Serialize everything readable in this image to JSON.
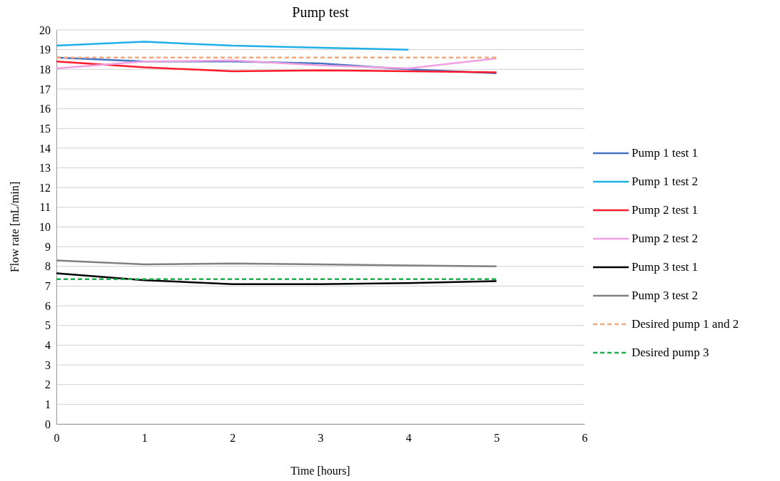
{
  "chart_data": {
    "type": "line",
    "title": "Pump test",
    "xlabel": "Time [hours]",
    "ylabel": "Flow rate [mL/min]",
    "x": [
      0,
      1,
      2,
      3,
      4,
      5
    ],
    "xlim": [
      0,
      6
    ],
    "xticks": [
      0,
      1,
      2,
      3,
      4,
      5,
      6
    ],
    "ylim": [
      0,
      20
    ],
    "yticks": [
      0,
      1,
      2,
      3,
      4,
      5,
      6,
      7,
      8,
      9,
      10,
      11,
      12,
      13,
      14,
      15,
      16,
      17,
      18,
      19,
      20
    ],
    "grid": "y",
    "legend": "right",
    "marker": "none",
    "series": [
      {
        "name": "Pump 1 test 1",
        "color": "#4472c4",
        "values": [
          18.6,
          18.4,
          18.4,
          18.3,
          18.0,
          17.8
        ]
      },
      {
        "name": "Pump 1 test 2",
        "color": "#1fb0e8",
        "values": [
          19.2,
          19.4,
          19.2,
          19.1,
          19.0,
          null
        ]
      },
      {
        "name": "Pump 2 test 1",
        "color": "#ff1a2a",
        "values": [
          18.4,
          18.1,
          17.9,
          17.95,
          17.9,
          17.85
        ]
      },
      {
        "name": "Pump 2 test 2",
        "color": "#eea0e0",
        "values": [
          18.05,
          18.4,
          18.45,
          18.2,
          18.05,
          18.55
        ]
      },
      {
        "name": "Pump 3 test 1",
        "color": "#000000",
        "values": [
          7.65,
          7.3,
          7.1,
          7.1,
          7.15,
          7.25
        ]
      },
      {
        "name": "Pump 3 test 2",
        "color": "#808080",
        "values": [
          8.3,
          8.1,
          8.15,
          8.1,
          8.05,
          8.0
        ]
      },
      {
        "name": "Desired pump 1 and 2",
        "color": "#f4a87a",
        "line_style": "dashed",
        "values": [
          18.6,
          18.6,
          18.6,
          18.6,
          18.6,
          18.6
        ]
      },
      {
        "name": "Desired pump 3",
        "color": "#1fae4e",
        "line_style": "dashed",
        "values": [
          7.35,
          7.35,
          7.35,
          7.35,
          7.35,
          7.35
        ]
      }
    ]
  }
}
